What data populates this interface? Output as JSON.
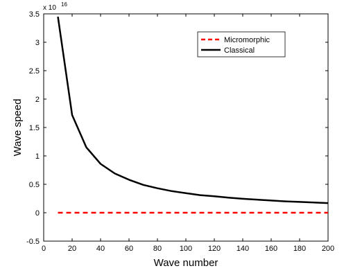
{
  "chart_data": {
    "type": "line",
    "xlabel": "Wave number",
    "ylabel": "Wave speed",
    "xlim": [
      0,
      200
    ],
    "ylim": [
      -0.5,
      3.5
    ],
    "y_scale_multiplier": "x 10",
    "y_scale_exponent": "16",
    "x_ticks": [
      0,
      20,
      40,
      60,
      80,
      100,
      120,
      140,
      160,
      180,
      200
    ],
    "y_ticks": [
      -0.5,
      0,
      0.5,
      1,
      1.5,
      2,
      2.5,
      3,
      3.5
    ],
    "x_tick_labels": [
      "0",
      "20",
      "40",
      "60",
      "80",
      "100",
      "120",
      "140",
      "160",
      "180",
      "200"
    ],
    "y_tick_labels": [
      "-0.5",
      "0",
      "0.5",
      "1",
      "1.5",
      "2",
      "2.5",
      "3",
      "3.5"
    ],
    "legend_position": "top-right",
    "grid": false,
    "series": [
      {
        "name": "Micromorphic",
        "color": "#ff0000",
        "style": "dashed",
        "x": [
          10,
          200
        ],
        "y": [
          0,
          0
        ]
      },
      {
        "name": "Classical",
        "color": "#000000",
        "style": "solid",
        "x": [
          10,
          20,
          30,
          40,
          50,
          60,
          70,
          80,
          90,
          100,
          110,
          120,
          130,
          140,
          150,
          160,
          170,
          180,
          190,
          200
        ],
        "y": [
          3.45,
          1.72,
          1.15,
          0.86,
          0.69,
          0.58,
          0.49,
          0.43,
          0.38,
          0.345,
          0.31,
          0.29,
          0.265,
          0.245,
          0.23,
          0.215,
          0.2,
          0.19,
          0.18,
          0.17
        ]
      }
    ]
  }
}
